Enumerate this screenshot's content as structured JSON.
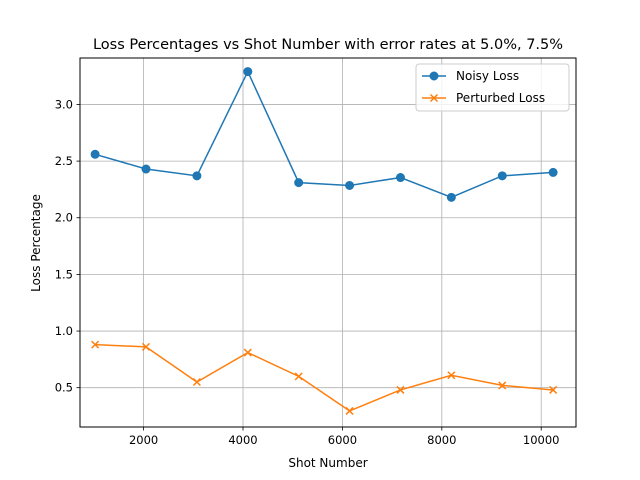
{
  "chart_data": {
    "type": "line",
    "title": "Loss Percentages vs Shot Number with error rates at 5.0%, 7.5%",
    "xlabel": "Shot Number",
    "ylabel": "Loss Percentage",
    "x": [
      1024,
      2048,
      3072,
      4096,
      5120,
      6144,
      7168,
      8192,
      9216,
      10240
    ],
    "xlim": [
      720,
      10700
    ],
    "ylim": [
      0.153,
      3.41
    ],
    "xticks": [
      2000,
      4000,
      6000,
      8000,
      10000
    ],
    "xtick_labels": [
      "2000",
      "4000",
      "6000",
      "8000",
      "10000"
    ],
    "yticks": [
      0.5,
      1.0,
      1.5,
      2.0,
      2.5,
      3.0
    ],
    "ytick_labels": [
      "0.5",
      "1.0",
      "1.5",
      "2.0",
      "2.5",
      "3.0"
    ],
    "grid": true,
    "legend_position": "top-right",
    "series": [
      {
        "name": "Noisy Loss",
        "color": "#1f77b4",
        "marker": "circle",
        "values": [
          2.56,
          2.43,
          2.37,
          3.29,
          2.31,
          2.285,
          2.355,
          2.18,
          2.37,
          2.4
        ]
      },
      {
        "name": "Perturbed Loss",
        "color": "#ff7f0e",
        "marker": "x",
        "values": [
          0.88,
          0.86,
          0.55,
          0.81,
          0.6,
          0.295,
          0.48,
          0.61,
          0.52,
          0.48
        ]
      }
    ]
  }
}
